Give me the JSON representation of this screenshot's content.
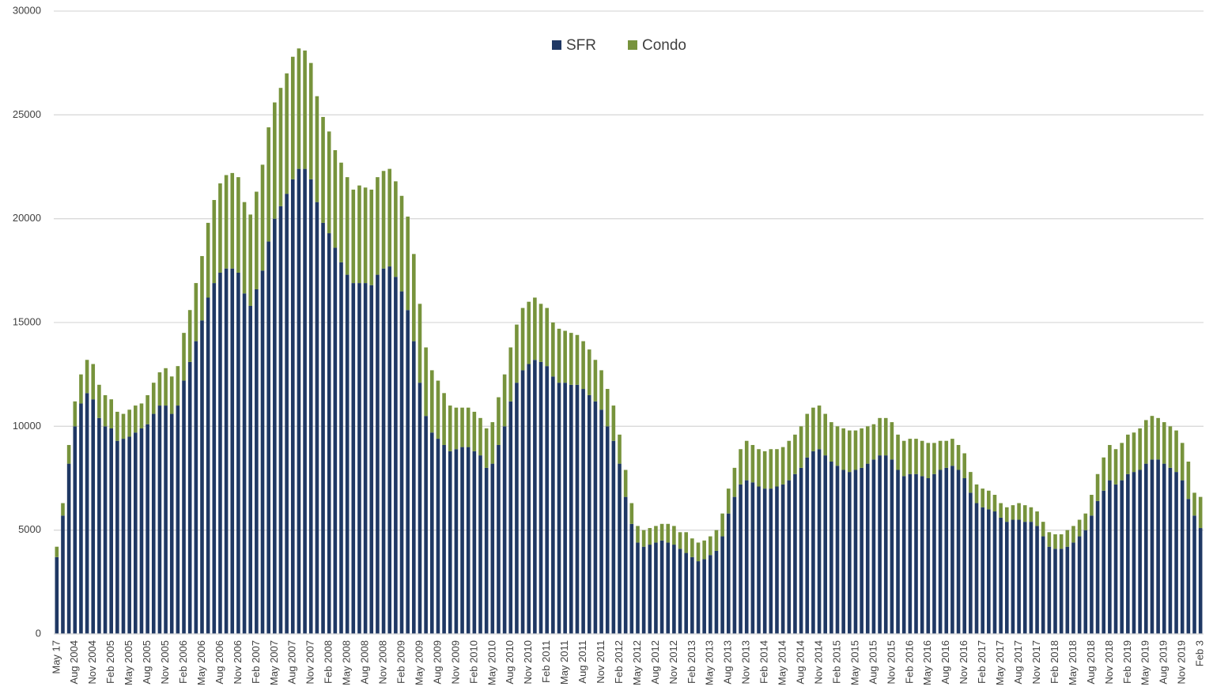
{
  "chart_data": {
    "type": "stacked-bar",
    "categories": [
      "May 17",
      null,
      null,
      "Aug 2004",
      null,
      null,
      "Nov 2004",
      null,
      null,
      "Feb 2005",
      null,
      null,
      "May 2005",
      null,
      null,
      "Aug 2005",
      null,
      null,
      "Nov 2005",
      null,
      null,
      "Feb 2006",
      null,
      null,
      "May 2006",
      null,
      null,
      "Aug 2006",
      null,
      null,
      "Nov 2006",
      null,
      null,
      "Feb 2007",
      null,
      null,
      "May 2007",
      null,
      null,
      "Aug 2007",
      null,
      null,
      "Nov 2007",
      null,
      null,
      "Feb 2008",
      null,
      null,
      "May 2008",
      null,
      null,
      "Aug 2008",
      null,
      null,
      "Nov 2008",
      null,
      null,
      "Feb 2009",
      null,
      null,
      "May 2009",
      null,
      null,
      "Aug 2009",
      null,
      null,
      "Nov 2009",
      null,
      null,
      "Feb 2010",
      null,
      null,
      "May 2010",
      null,
      null,
      "Aug 2010",
      null,
      null,
      "Nov 2010",
      null,
      null,
      "Feb 2011",
      null,
      null,
      "May 2011",
      null,
      null,
      "Aug 2011",
      null,
      null,
      "Nov 2011",
      null,
      null,
      "Feb 2012",
      null,
      null,
      "May 2012",
      null,
      null,
      "Aug 2012",
      null,
      null,
      "Nov 2012",
      null,
      null,
      "Feb 2013",
      null,
      null,
      "May 2013",
      null,
      null,
      "Aug 2013",
      null,
      null,
      "Nov 2013",
      null,
      null,
      "Feb 2014",
      null,
      null,
      "May 2014",
      null,
      null,
      "Aug 2014",
      null,
      null,
      "Nov 2014",
      null,
      null,
      "Feb 2015",
      null,
      null,
      "May 2015",
      null,
      null,
      "Aug 2015",
      null,
      null,
      "Nov 2015",
      null,
      null,
      "Feb 2016",
      null,
      null,
      "May 2016",
      null,
      null,
      "Aug 2016",
      null,
      null,
      "Nov 2016",
      null,
      null,
      "Feb 2017",
      null,
      null,
      "May 2017",
      null,
      null,
      "Aug 2017",
      null,
      null,
      "Nov 2017",
      null,
      null,
      "Feb 2018",
      null,
      null,
      "May 2018",
      null,
      null,
      "Aug 2018",
      null,
      null,
      "Nov 2018",
      null,
      null,
      "Feb 2019",
      null,
      null,
      "May 2019",
      null,
      null,
      "Aug 2019",
      null,
      null,
      "Nov 2019",
      null,
      null,
      "Feb 3"
    ],
    "series": [
      {
        "name": "SFR",
        "color": "#1f3864",
        "values": [
          3700,
          5700,
          8200,
          10000,
          11100,
          11600,
          11300,
          10400,
          10000,
          9900,
          9300,
          9400,
          9500,
          9700,
          9900,
          10100,
          10600,
          11000,
          11000,
          10600,
          11000,
          12200,
          13100,
          14100,
          15100,
          16200,
          16900,
          17400,
          17600,
          17600,
          17400,
          16400,
          15800,
          16600,
          17500,
          18900,
          20000,
          20600,
          21200,
          21900,
          22400,
          22400,
          21900,
          20800,
          19800,
          19300,
          18600,
          17900,
          17300,
          16900,
          16900,
          16900,
          16800,
          17300,
          17600,
          17700,
          17200,
          16500,
          15600,
          14100,
          12100,
          10500,
          9700,
          9400,
          9100,
          8800,
          8900,
          9000,
          9000,
          8800,
          8600,
          8000,
          8200,
          9100,
          10000,
          11200,
          12100,
          12700,
          13000,
          13200,
          13100,
          12900,
          12400,
          12100,
          12100,
          12000,
          12000,
          11800,
          11500,
          11200,
          10800,
          10000,
          9300,
          8200,
          6600,
          5300,
          4400,
          4200,
          4300,
          4400,
          4500,
          4400,
          4300,
          4100,
          3900,
          3700,
          3500,
          3600,
          3800,
          4000,
          4700,
          5800,
          6600,
          7200,
          7400,
          7300,
          7100,
          7000,
          7000,
          7100,
          7200,
          7400,
          7700,
          8000,
          8500,
          8800,
          8900,
          8600,
          8300,
          8100,
          7900,
          7800,
          7900,
          8000,
          8200,
          8400,
          8600,
          8600,
          8400,
          7900,
          7600,
          7700,
          7700,
          7600,
          7500,
          7700,
          7900,
          8000,
          8100,
          7900,
          7500,
          6800,
          6300,
          6100,
          6000,
          5900,
          5600,
          5400,
          5500,
          5500,
          5400,
          5400,
          5200,
          4700,
          4200,
          4100,
          4100,
          4200,
          4400,
          4700,
          5000,
          5700,
          6400,
          6900,
          7400,
          7200,
          7400,
          7700,
          7800,
          7900,
          8200,
          8400,
          8400,
          8200,
          8000,
          7800,
          7400,
          6500,
          5700,
          5100
        ]
      },
      {
        "name": "Condo",
        "color": "#77933c",
        "values": [
          500,
          600,
          900,
          1200,
          1400,
          1600,
          1700,
          1600,
          1500,
          1400,
          1400,
          1200,
          1300,
          1300,
          1200,
          1400,
          1500,
          1600,
          1800,
          1800,
          1900,
          2300,
          2500,
          2800,
          3100,
          3600,
          4000,
          4300,
          4500,
          4600,
          4600,
          4400,
          4400,
          4700,
          5100,
          5500,
          5600,
          5700,
          5800,
          5900,
          5800,
          5700,
          5600,
          5100,
          5100,
          4900,
          4700,
          4800,
          4700,
          4500,
          4700,
          4600,
          4600,
          4700,
          4700,
          4700,
          4600,
          4600,
          4500,
          4200,
          3800,
          3300,
          3000,
          2800,
          2500,
          2200,
          2000,
          1900,
          1900,
          1900,
          1800,
          1900,
          2000,
          2300,
          2500,
          2600,
          2800,
          3000,
          3000,
          3000,
          2800,
          2800,
          2600,
          2600,
          2500,
          2500,
          2400,
          2300,
          2200,
          2000,
          1900,
          1800,
          1700,
          1400,
          1300,
          1000,
          800,
          800,
          800,
          800,
          800,
          900,
          900,
          800,
          1000,
          900,
          900,
          900,
          900,
          1000,
          1100,
          1200,
          1400,
          1700,
          1900,
          1800,
          1800,
          1800,
          1900,
          1800,
          1800,
          1900,
          1900,
          2000,
          2100,
          2100,
          2100,
          2000,
          1900,
          1900,
          2000,
          2000,
          1900,
          1900,
          1800,
          1700,
          1800,
          1800,
          1800,
          1700,
          1700,
          1700,
          1700,
          1700,
          1700,
          1500,
          1400,
          1300,
          1300,
          1200,
          1200,
          1000,
          900,
          900,
          900,
          800,
          700,
          700,
          700,
          800,
          800,
          700,
          700,
          700,
          700,
          700,
          700,
          800,
          800,
          800,
          800,
          1000,
          1300,
          1600,
          1700,
          1700,
          1800,
          1900,
          1900,
          2000,
          2100,
          2100,
          2000,
          2000,
          2000,
          2000,
          1800,
          1800,
          1100,
          1500
        ]
      }
    ],
    "ylim": [
      0,
      30000
    ],
    "yticks": [
      0,
      5000,
      10000,
      15000,
      20000,
      25000,
      30000
    ],
    "grid": true,
    "legend": "top"
  }
}
